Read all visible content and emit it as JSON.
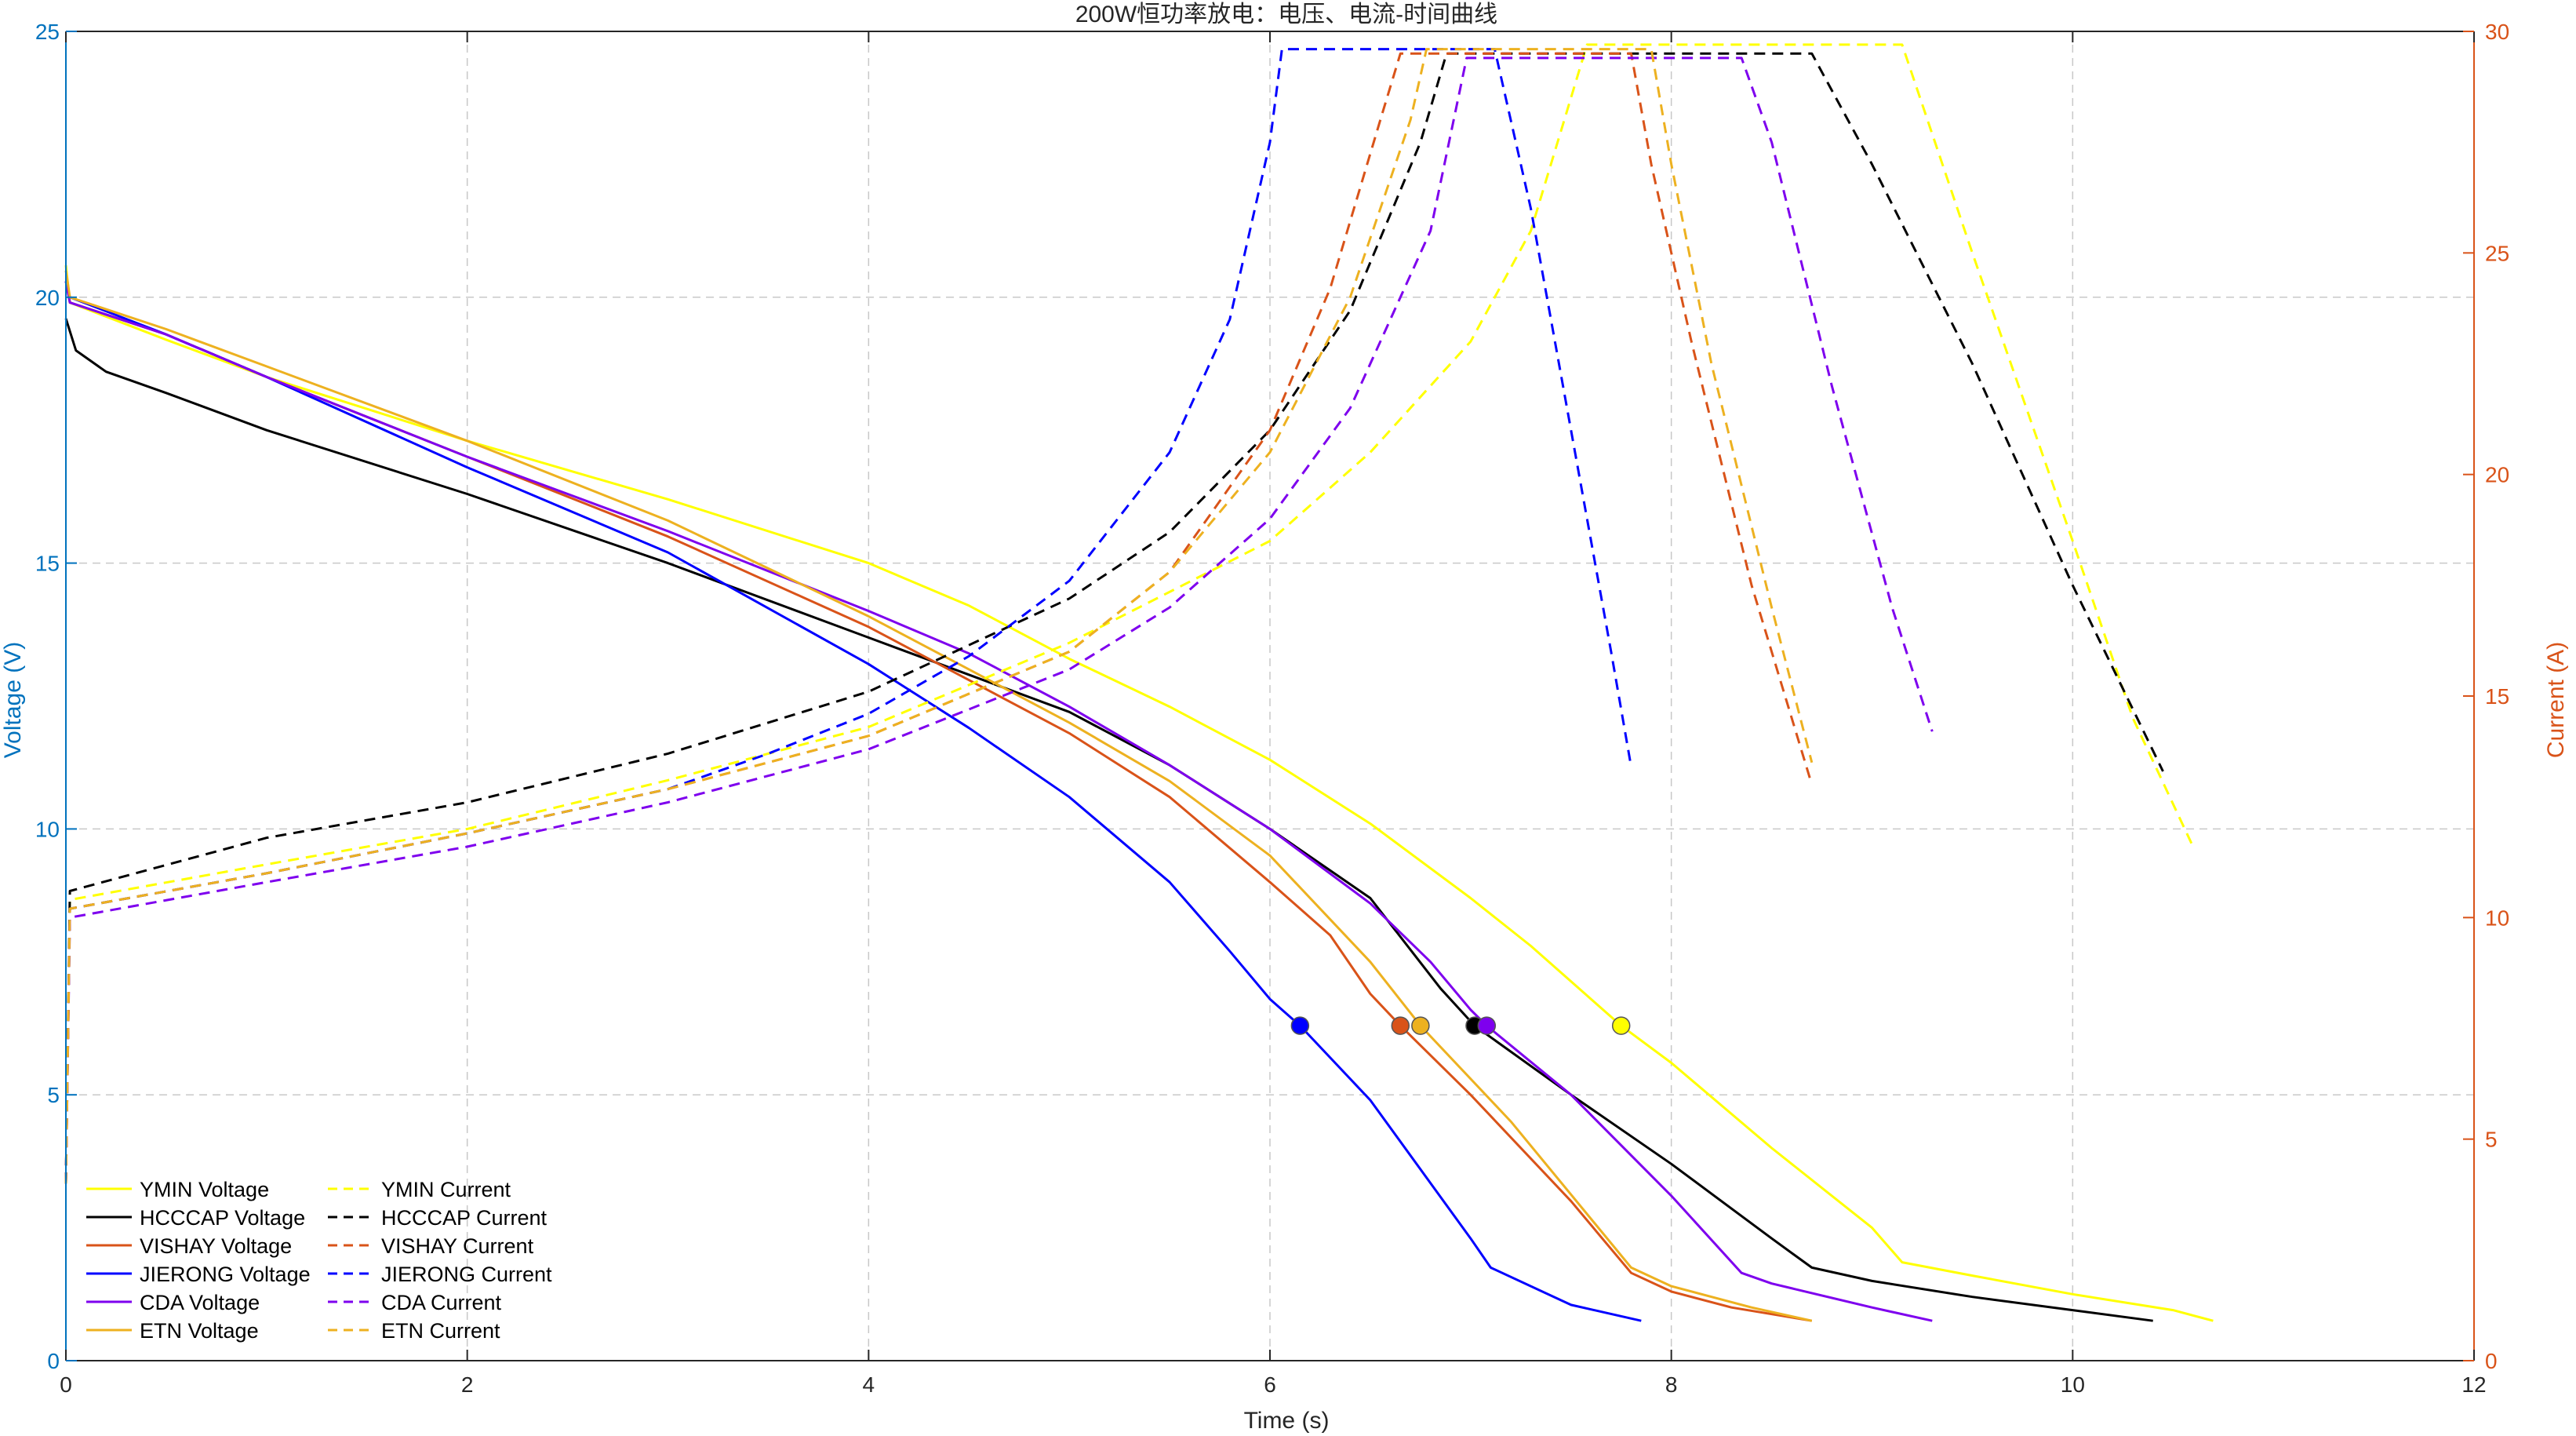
{
  "chart_data": {
    "type": "line",
    "title": "200W恒功率放电：电压、电流-时间曲线",
    "xlabel": "Time (s)",
    "ylabel_left": "Voltage (V)",
    "ylabel_right": "Current (A)",
    "xlim": [
      0,
      12
    ],
    "ylim_left": [
      0,
      25
    ],
    "ylim_right": [
      0,
      30
    ],
    "xticks": [
      "0",
      "2",
      "4",
      "6",
      "8",
      "10",
      "12"
    ],
    "yticks_left": [
      "0",
      "5",
      "10",
      "15",
      "20",
      "25"
    ],
    "yticks_right": [
      "0",
      "5",
      "10",
      "15",
      "20",
      "25",
      "30"
    ],
    "grid": true,
    "legend_position": "bottom-left",
    "left_axis_color": "#0072BD",
    "right_axis_color": "#D95319",
    "series": [
      {
        "name": "YMIN Voltage",
        "axis": "left",
        "style": "solid",
        "color": "#FFFF00",
        "x": [
          0,
          0.02,
          0.5,
          1,
          2,
          3,
          4,
          4.5,
          5,
          5.5,
          6,
          6.5,
          7,
          7.3,
          7.6,
          7.75,
          8,
          8.5,
          9,
          9.15,
          9.5,
          10,
          10.5,
          10.7
        ],
        "y": [
          20.6,
          19.9,
          19.2,
          18.5,
          17.3,
          16.2,
          15.0,
          14.2,
          13.2,
          12.3,
          11.3,
          10.1,
          8.7,
          7.8,
          6.8,
          6.3,
          5.6,
          4.0,
          2.5,
          1.85,
          1.6,
          1.25,
          0.95,
          0.75
        ],
        "marker": {
          "x": 7.75,
          "y": 6.3
        }
      },
      {
        "name": "HCCCAP Voltage",
        "axis": "left",
        "style": "solid",
        "color": "#000000",
        "x": [
          0,
          0.05,
          0.2,
          0.5,
          1,
          2,
          3,
          4,
          5,
          5.5,
          6,
          6.5,
          6.85,
          7.02,
          7.5,
          8,
          8.5,
          8.7,
          9,
          9.5,
          10,
          10.4
        ],
        "y": [
          19.6,
          19.0,
          18.6,
          18.2,
          17.5,
          16.3,
          15.0,
          13.6,
          12.2,
          11.2,
          10.0,
          8.7,
          7.0,
          6.3,
          5.0,
          3.7,
          2.3,
          1.75,
          1.5,
          1.2,
          0.95,
          0.75
        ],
        "marker": {
          "x": 7.02,
          "y": 6.3
        }
      },
      {
        "name": "VISHAY Voltage",
        "axis": "left",
        "style": "solid",
        "color": "#D95319",
        "x": [
          0,
          0.02,
          0.5,
          1,
          2,
          3,
          4,
          4.5,
          5,
          5.5,
          6,
          6.3,
          6.5,
          6.65,
          7,
          7.5,
          7.8,
          8,
          8.3,
          8.7
        ],
        "y": [
          20.3,
          19.9,
          19.3,
          18.5,
          17.0,
          15.5,
          13.8,
          12.8,
          11.8,
          10.6,
          9.0,
          8.0,
          6.9,
          6.3,
          5.0,
          3.0,
          1.65,
          1.3,
          1.0,
          0.75
        ],
        "marker": {
          "x": 6.65,
          "y": 6.3
        }
      },
      {
        "name": "JIERONG Voltage",
        "axis": "left",
        "style": "solid",
        "color": "#0000FF",
        "x": [
          0,
          0.02,
          0.5,
          1,
          2,
          3,
          4,
          4.5,
          5,
          5.5,
          5.8,
          6,
          6.15,
          6.5,
          7,
          7.1,
          7.5,
          7.85
        ],
        "y": [
          20.3,
          20.0,
          19.3,
          18.5,
          16.8,
          15.2,
          13.1,
          11.9,
          10.6,
          9.0,
          7.7,
          6.8,
          6.3,
          4.9,
          2.3,
          1.75,
          1.05,
          0.75
        ],
        "marker": {
          "x": 6.15,
          "y": 6.3
        }
      },
      {
        "name": "CDA Voltage",
        "axis": "left",
        "style": "solid",
        "color": "#7E00EE",
        "x": [
          0,
          0.02,
          0.5,
          1,
          2,
          3,
          4,
          4.5,
          5,
          5.5,
          6,
          6.5,
          6.8,
          7.0,
          7.08,
          7.5,
          8,
          8.35,
          8.5,
          9,
          9.3
        ],
        "y": [
          20.3,
          19.9,
          19.3,
          18.5,
          17.0,
          15.6,
          14.1,
          13.3,
          12.3,
          11.2,
          10.0,
          8.6,
          7.5,
          6.6,
          6.3,
          5.0,
          3.1,
          1.65,
          1.45,
          1.0,
          0.75
        ],
        "marker": {
          "x": 7.08,
          "y": 6.3
        }
      },
      {
        "name": "ETN Voltage",
        "axis": "left",
        "style": "solid",
        "color": "#EDB120",
        "x": [
          0,
          0.02,
          0.5,
          1,
          2,
          3,
          4,
          4.5,
          5,
          5.5,
          6,
          6.5,
          6.75,
          7.2,
          7.8,
          8,
          8.4,
          8.7
        ],
        "y": [
          20.5,
          20.0,
          19.4,
          18.7,
          17.3,
          15.8,
          14.0,
          13.0,
          12.0,
          10.9,
          9.5,
          7.5,
          6.3,
          4.5,
          1.75,
          1.4,
          1.0,
          0.75
        ],
        "marker": {
          "x": 6.75,
          "y": 6.3
        }
      },
      {
        "name": "YMIN Current",
        "axis": "right",
        "style": "dashed",
        "color": "#FFFF00",
        "x": [
          0,
          0.02,
          1,
          2,
          3,
          4,
          5,
          6,
          6.5,
          7,
          7.3,
          7.58,
          9.15,
          9.5,
          10,
          10.3,
          10.6
        ],
        "y": [
          4.0,
          10.4,
          11.2,
          12.0,
          13.1,
          14.3,
          16.2,
          18.5,
          20.5,
          23.0,
          25.5,
          29.7,
          29.7,
          25.0,
          18.5,
          14.5,
          11.6
        ]
      },
      {
        "name": "HCCCAP Current",
        "axis": "right",
        "style": "dashed",
        "color": "#000000",
        "x": [
          0,
          0.02,
          1,
          2,
          3,
          4,
          5,
          5.5,
          6,
          6.4,
          6.75,
          6.88,
          8.7,
          9.0,
          9.5,
          10,
          10.45
        ],
        "y": [
          4.0,
          10.6,
          11.8,
          12.6,
          13.7,
          15.1,
          17.2,
          18.7,
          21.0,
          23.7,
          27.5,
          29.5,
          29.5,
          27.0,
          22.5,
          17.5,
          13.3
        ]
      },
      {
        "name": "VISHAY Current",
        "axis": "right",
        "style": "dashed",
        "color": "#D95319",
        "x": [
          0,
          0.02,
          1,
          2,
          3,
          4,
          5,
          5.5,
          6,
          6.3,
          6.55,
          6.65,
          7.8,
          7.9,
          8.1,
          8.4,
          8.7
        ],
        "y": [
          4.0,
          10.2,
          11.0,
          11.9,
          12.9,
          14.1,
          16.0,
          17.8,
          21.0,
          24.2,
          28.0,
          29.5,
          29.5,
          27.0,
          23.0,
          17.5,
          13.0
        ]
      },
      {
        "name": "JIERONG Current",
        "axis": "right",
        "style": "dashed",
        "color": "#0000FF",
        "x": [
          0,
          0.02,
          1,
          2,
          3,
          3.5,
          4,
          4.5,
          5,
          5.5,
          5.8,
          6.0,
          6.06,
          7.12,
          7.3,
          7.5,
          7.7,
          7.8
        ],
        "y": [
          4.0,
          10.2,
          11.0,
          11.9,
          12.9,
          13.7,
          14.6,
          15.9,
          17.6,
          20.5,
          23.5,
          27.5,
          29.6,
          29.6,
          26.0,
          21.0,
          16.0,
          13.4
        ]
      },
      {
        "name": "CDA Current",
        "axis": "right",
        "style": "dashed",
        "color": "#7E00EE",
        "x": [
          0,
          0.02,
          1,
          2,
          3,
          4,
          5,
          5.5,
          6,
          6.4,
          6.8,
          6.98,
          8.35,
          8.5,
          8.8,
          9.1,
          9.3
        ],
        "y": [
          4.0,
          10.0,
          10.8,
          11.6,
          12.6,
          13.8,
          15.6,
          17.0,
          19.0,
          21.5,
          25.5,
          29.4,
          29.4,
          27.5,
          22.0,
          17.0,
          14.2
        ]
      },
      {
        "name": "ETN Current",
        "axis": "right",
        "style": "dashed",
        "color": "#EDB120",
        "x": [
          0,
          0.02,
          1,
          2,
          3,
          4,
          5,
          5.5,
          6,
          6.4,
          6.7,
          6.78,
          7.9,
          8.0,
          8.2,
          8.5,
          8.7
        ],
        "y": [
          4.0,
          10.2,
          11.0,
          11.9,
          12.9,
          14.1,
          16.0,
          17.8,
          20.5,
          24.0,
          28.0,
          29.6,
          29.6,
          27.0,
          22.5,
          17.0,
          13.5
        ]
      }
    ]
  }
}
